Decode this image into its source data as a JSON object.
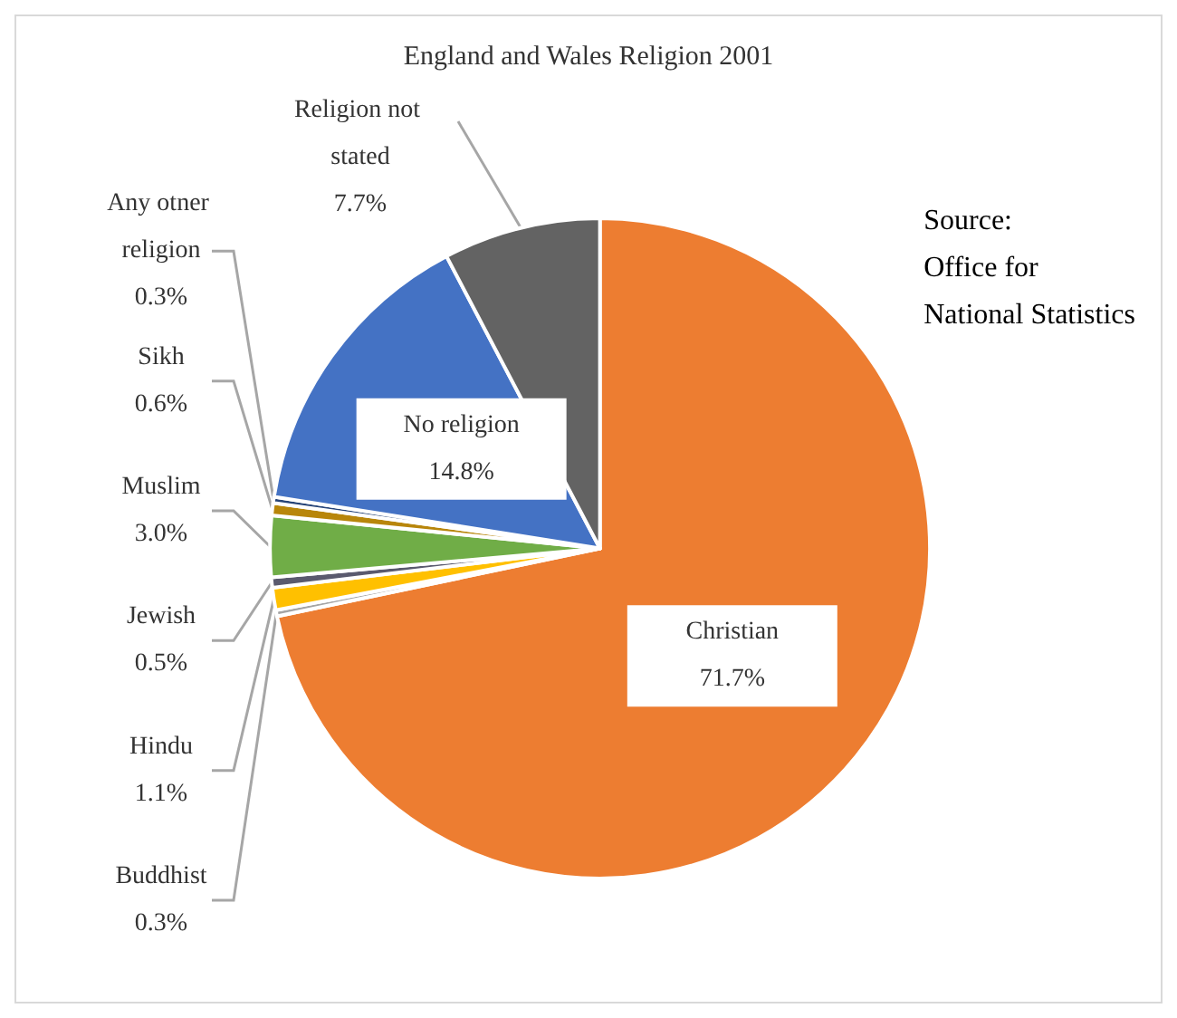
{
  "chart_data": {
    "type": "pie",
    "title": "England and Wales Religion 2001",
    "categories": [
      "Christian",
      "Buddhist",
      "Hindu",
      "Jewish",
      "Muslim",
      "Sikh",
      "Any otner religion",
      "No religion",
      "Religion not stated"
    ],
    "values": [
      71.7,
      0.3,
      1.1,
      0.5,
      3.0,
      0.6,
      0.3,
      14.8,
      7.7
    ],
    "colors": [
      "#ed7d31",
      "#a5a5a5",
      "#ffc000",
      "#5a5a6e",
      "#70ad47",
      "#b8860b",
      "#264478",
      "#4472c4",
      "#636363"
    ],
    "value_labels": [
      "71.7%",
      "0.3%",
      "1.1%",
      "0.5%",
      "3.0%",
      "0.6%",
      "0.3%",
      "14.8%",
      "7.7%"
    ],
    "legend": false,
    "annotations": [
      "Source:\nOffice for\nNational Statistics"
    ]
  }
}
